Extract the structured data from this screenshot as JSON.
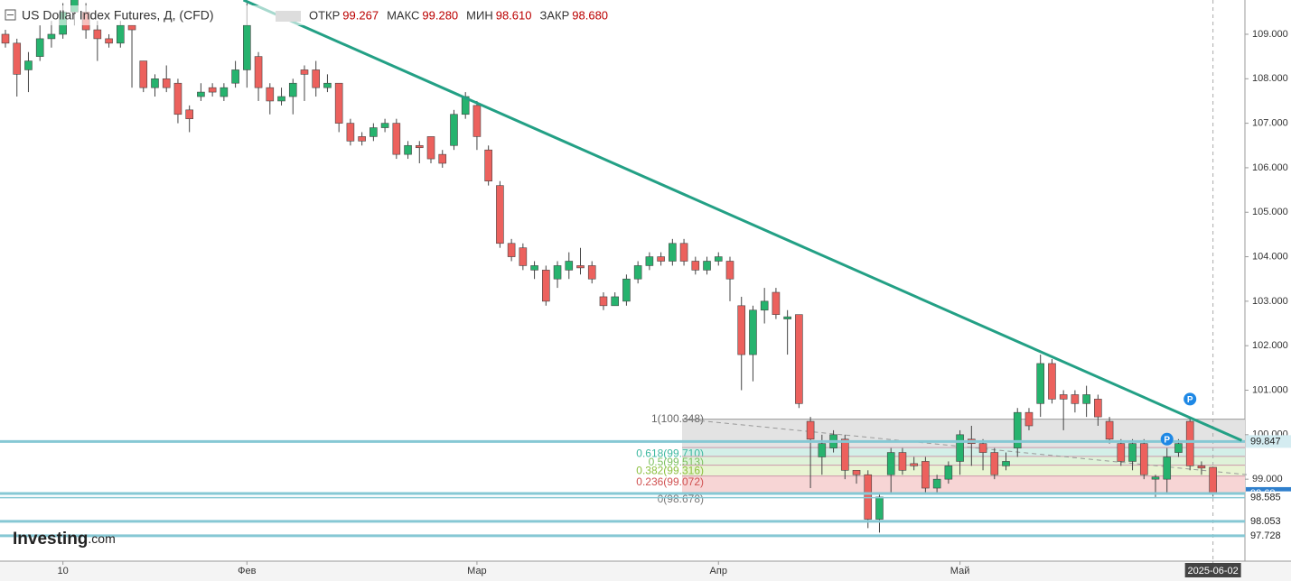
{
  "chart_data": {
    "type": "candlestick",
    "title": "US Dollar Index Futures, Д, (CFD)",
    "ohlc_legend": [
      {
        "name": "ОТКР",
        "value": "99.267"
      },
      {
        "name": "МАКС",
        "value": "99.280"
      },
      {
        "name": "МИН",
        "value": "98.610"
      },
      {
        "name": "ЗАКР",
        "value": "98.680"
      }
    ],
    "ohlc": [
      [
        109.0,
        109.1,
        108.7,
        108.8
      ],
      [
        108.8,
        108.9,
        107.6,
        108.1
      ],
      [
        108.2,
        108.6,
        107.7,
        108.4
      ],
      [
        108.5,
        109.2,
        108.4,
        108.9
      ],
      [
        108.9,
        109.3,
        108.7,
        109.0
      ],
      [
        109.0,
        109.7,
        108.9,
        109.5
      ],
      [
        109.5,
        109.9,
        109.2,
        109.8
      ],
      [
        109.5,
        109.7,
        108.9,
        109.1
      ],
      [
        109.1,
        109.3,
        108.4,
        108.9
      ],
      [
        108.9,
        109.0,
        108.7,
        108.8
      ],
      [
        108.8,
        109.3,
        108.7,
        109.2
      ],
      [
        109.2,
        109.2,
        107.8,
        109.1
      ],
      [
        108.4,
        108.4,
        107.7,
        107.8
      ],
      [
        107.8,
        108.1,
        107.6,
        108.0
      ],
      [
        108.0,
        108.3,
        107.7,
        107.8
      ],
      [
        107.9,
        108.0,
        107.0,
        107.2
      ],
      [
        107.3,
        107.4,
        106.8,
        107.1
      ],
      [
        107.6,
        107.9,
        107.5,
        107.7
      ],
      [
        107.8,
        107.9,
        107.6,
        107.7
      ],
      [
        107.6,
        107.9,
        107.5,
        107.8
      ],
      [
        107.9,
        108.4,
        107.8,
        108.2
      ],
      [
        108.2,
        109.7,
        107.8,
        109.2
      ],
      [
        108.5,
        108.6,
        107.5,
        107.8
      ],
      [
        107.8,
        107.9,
        107.2,
        107.5
      ],
      [
        107.5,
        107.8,
        107.4,
        107.6
      ],
      [
        107.6,
        108.0,
        107.2,
        107.9
      ],
      [
        108.2,
        108.3,
        107.5,
        108.1
      ],
      [
        108.2,
        108.4,
        107.6,
        107.8
      ],
      [
        107.8,
        108.1,
        107.7,
        107.9
      ],
      [
        107.9,
        107.9,
        106.8,
        107.0
      ],
      [
        107.0,
        107.1,
        106.5,
        106.6
      ],
      [
        106.7,
        106.8,
        106.5,
        106.6
      ],
      [
        106.7,
        107.0,
        106.6,
        106.9
      ],
      [
        106.9,
        107.1,
        106.8,
        107.0
      ],
      [
        107.0,
        107.1,
        106.2,
        106.3
      ],
      [
        106.3,
        106.6,
        106.2,
        106.5
      ],
      [
        106.5,
        106.6,
        106.1,
        106.45
      ],
      [
        106.7,
        106.7,
        106.1,
        106.2
      ],
      [
        106.3,
        106.4,
        106.0,
        106.1
      ],
      [
        106.5,
        107.3,
        106.4,
        107.2
      ],
      [
        107.2,
        107.7,
        107.1,
        107.6
      ],
      [
        107.4,
        107.5,
        106.4,
        106.7
      ],
      [
        106.4,
        106.5,
        105.6,
        105.7
      ],
      [
        105.6,
        105.7,
        104.2,
        104.3
      ],
      [
        104.3,
        104.4,
        103.9,
        104.0
      ],
      [
        104.2,
        104.3,
        103.7,
        103.8
      ],
      [
        103.7,
        103.9,
        103.5,
        103.8
      ],
      [
        103.7,
        103.8,
        102.9,
        103.0
      ],
      [
        103.5,
        103.9,
        103.3,
        103.8
      ],
      [
        103.7,
        104.1,
        103.5,
        103.9
      ],
      [
        103.8,
        104.2,
        103.6,
        103.75
      ],
      [
        103.8,
        103.9,
        103.4,
        103.5
      ],
      [
        103.1,
        103.2,
        102.8,
        102.9
      ],
      [
        102.9,
        103.2,
        102.9,
        103.1
      ],
      [
        103.0,
        103.6,
        102.9,
        103.5
      ],
      [
        103.5,
        103.9,
        103.4,
        103.8
      ],
      [
        103.8,
        104.1,
        103.7,
        104.0
      ],
      [
        104.0,
        104.1,
        103.8,
        103.9
      ],
      [
        103.9,
        104.4,
        103.8,
        104.3
      ],
      [
        104.3,
        104.4,
        103.8,
        103.9
      ],
      [
        103.9,
        104.0,
        103.6,
        103.7
      ],
      [
        103.7,
        104.0,
        103.6,
        103.9
      ],
      [
        103.9,
        104.1,
        103.8,
        104.0
      ],
      [
        103.9,
        104.0,
        103.0,
        103.5
      ],
      [
        102.9,
        103.1,
        101.0,
        101.8
      ],
      [
        101.8,
        102.9,
        101.2,
        102.8
      ],
      [
        102.8,
        103.3,
        102.5,
        103.0
      ],
      [
        103.2,
        103.3,
        102.6,
        102.7
      ],
      [
        102.6,
        102.8,
        101.8,
        102.65
      ],
      [
        102.7,
        102.7,
        100.6,
        100.7
      ],
      [
        100.3,
        100.4,
        98.8,
        99.9
      ],
      [
        99.5,
        100.0,
        99.1,
        99.8
      ],
      [
        99.7,
        100.1,
        99.6,
        100.0
      ],
      [
        99.9,
        100.0,
        99.0,
        99.2
      ],
      [
        99.2,
        99.2,
        98.9,
        99.1
      ],
      [
        99.1,
        99.2,
        97.9,
        98.1
      ],
      [
        98.1,
        98.7,
        97.8,
        98.6
      ],
      [
        99.1,
        99.7,
        98.7,
        99.6
      ],
      [
        99.6,
        99.7,
        99.1,
        99.2
      ],
      [
        99.35,
        99.5,
        99.2,
        99.3
      ],
      [
        99.4,
        99.5,
        98.7,
        98.8
      ],
      [
        98.8,
        99.1,
        98.7,
        99.0
      ],
      [
        99.0,
        99.4,
        98.9,
        99.3
      ],
      [
        99.4,
        100.1,
        99.1,
        100.0
      ],
      [
        99.9,
        100.2,
        99.3,
        99.8
      ],
      [
        99.8,
        99.9,
        99.2,
        99.6
      ],
      [
        99.6,
        99.7,
        99.0,
        99.1
      ],
      [
        99.3,
        99.6,
        99.2,
        99.4
      ],
      [
        99.7,
        100.6,
        99.5,
        100.5
      ],
      [
        100.5,
        100.6,
        100.1,
        100.2
      ],
      [
        100.7,
        101.8,
        100.4,
        101.6
      ],
      [
        101.6,
        101.7,
        100.7,
        100.8
      ],
      [
        100.9,
        101.0,
        100.1,
        100.8
      ],
      [
        100.9,
        101.0,
        100.5,
        100.7
      ],
      [
        100.7,
        101.1,
        100.4,
        100.9
      ],
      [
        100.8,
        100.9,
        100.2,
        100.4
      ],
      [
        100.3,
        100.4,
        99.8,
        99.9
      ],
      [
        99.8,
        99.9,
        99.3,
        99.4
      ],
      [
        99.4,
        99.9,
        99.2,
        99.8
      ],
      [
        99.8,
        99.9,
        99.0,
        99.1
      ],
      [
        99.0,
        99.1,
        98.6,
        99.05
      ],
      [
        99.0,
        99.7,
        98.7,
        99.5
      ],
      [
        99.6,
        99.9,
        99.5,
        99.8
      ],
      [
        100.3,
        100.4,
        99.2,
        99.3
      ],
      [
        99.3,
        99.4,
        99.1,
        99.25
      ],
      [
        99.267,
        99.28,
        98.61,
        98.68
      ]
    ],
    "x_labels": [
      {
        "index": 5,
        "label": "10"
      },
      {
        "index": 21,
        "label": "Фев"
      },
      {
        "index": 41,
        "label": "Мар"
      },
      {
        "index": 62,
        "label": "Апр"
      },
      {
        "index": 83,
        "label": "Май"
      },
      {
        "index": 105,
        "label": "2025-06-02"
      }
    ],
    "ylim": [
      97.3,
      109.77
    ],
    "yticks": [
      {
        "value": 99,
        "label": "99.000"
      },
      {
        "value": 100,
        "label": "100.000"
      },
      {
        "value": 101,
        "label": "101.000"
      },
      {
        "value": 102,
        "label": "102.000"
      },
      {
        "value": 103,
        "label": "103.000"
      },
      {
        "value": 104,
        "label": "104.000"
      },
      {
        "value": 105,
        "label": "105.000"
      },
      {
        "value": 106,
        "label": "106.000"
      },
      {
        "value": 107,
        "label": "107.000"
      },
      {
        "value": 108,
        "label": "108.000"
      },
      {
        "value": 109,
        "label": "109.000"
      }
    ],
    "levels": [
      99.847,
      98.68,
      98.585,
      98.053,
      97.728
    ],
    "fib": [
      {
        "value": 100.348,
        "label": "1(100.348)"
      },
      {
        "value": 99.71,
        "label": "0.618(99.710)"
      },
      {
        "value": 99.513,
        "label": "0.5(99.513)"
      },
      {
        "value": 99.316,
        "label": "0.382(99.316)"
      },
      {
        "value": 99.072,
        "label": "0.236(99.072)"
      },
      {
        "value": 98.678,
        "label": "0(98.678)"
      }
    ],
    "fib_colors": [
      "#e3e3e3",
      "#d3efe8",
      "#dff2d9",
      "#e9f4d3",
      "#f7d5d5"
    ],
    "trendline": {
      "x": [
        20.7,
        107.5
      ],
      "y": [
        109.77,
        99.87
      ]
    },
    "dashed_line": {
      "x": [
        59.0,
        108.0
      ],
      "y": [
        100.35,
        99.1
      ]
    },
    "markers": [
      {
        "label": "P",
        "index": 103,
        "y": 100.8
      },
      {
        "label": "P",
        "index": 101,
        "y": 99.9
      }
    ],
    "up_color": "#26b36e",
    "down_color": "#ec615d",
    "watermark": "Investing",
    ".com": ".com"
  }
}
